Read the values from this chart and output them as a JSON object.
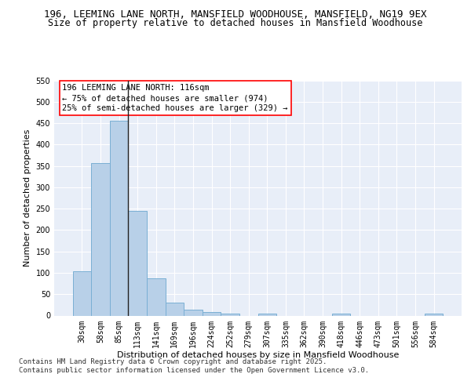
{
  "title": "196, LEEMING LANE NORTH, MANSFIELD WOODHOUSE, MANSFIELD, NG19 9EX",
  "subtitle": "Size of property relative to detached houses in Mansfield Woodhouse",
  "xlabel": "Distribution of detached houses by size in Mansfield Woodhouse",
  "ylabel": "Number of detached properties",
  "categories": [
    "30sqm",
    "58sqm",
    "85sqm",
    "113sqm",
    "141sqm",
    "169sqm",
    "196sqm",
    "224sqm",
    "252sqm",
    "279sqm",
    "307sqm",
    "335sqm",
    "362sqm",
    "390sqm",
    "418sqm",
    "446sqm",
    "473sqm",
    "501sqm",
    "556sqm",
    "584sqm"
  ],
  "values": [
    104,
    357,
    456,
    245,
    88,
    30,
    13,
    9,
    5,
    0,
    5,
    0,
    0,
    0,
    5,
    0,
    0,
    0,
    0,
    5
  ],
  "bar_color": "#b8d0e8",
  "bar_edge_color": "#7aafd4",
  "annotation_line1": "196 LEEMING LANE NORTH: 116sqm",
  "annotation_line2": "← 75% of detached houses are smaller (974)",
  "annotation_line3": "25% of semi-detached houses are larger (329) →",
  "vline_x_index": 3,
  "vline_color": "#222222",
  "ylim": [
    0,
    550
  ],
  "yticks": [
    0,
    50,
    100,
    150,
    200,
    250,
    300,
    350,
    400,
    450,
    500,
    550
  ],
  "background_color": "#e8eef8",
  "grid_color": "#ffffff",
  "footer_text": "Contains HM Land Registry data © Crown copyright and database right 2025.\nContains public sector information licensed under the Open Government Licence v3.0.",
  "title_fontsize": 9,
  "subtitle_fontsize": 8.5,
  "xlabel_fontsize": 8,
  "ylabel_fontsize": 8,
  "tick_fontsize": 7,
  "annotation_fontsize": 7.5,
  "footer_fontsize": 6.5
}
